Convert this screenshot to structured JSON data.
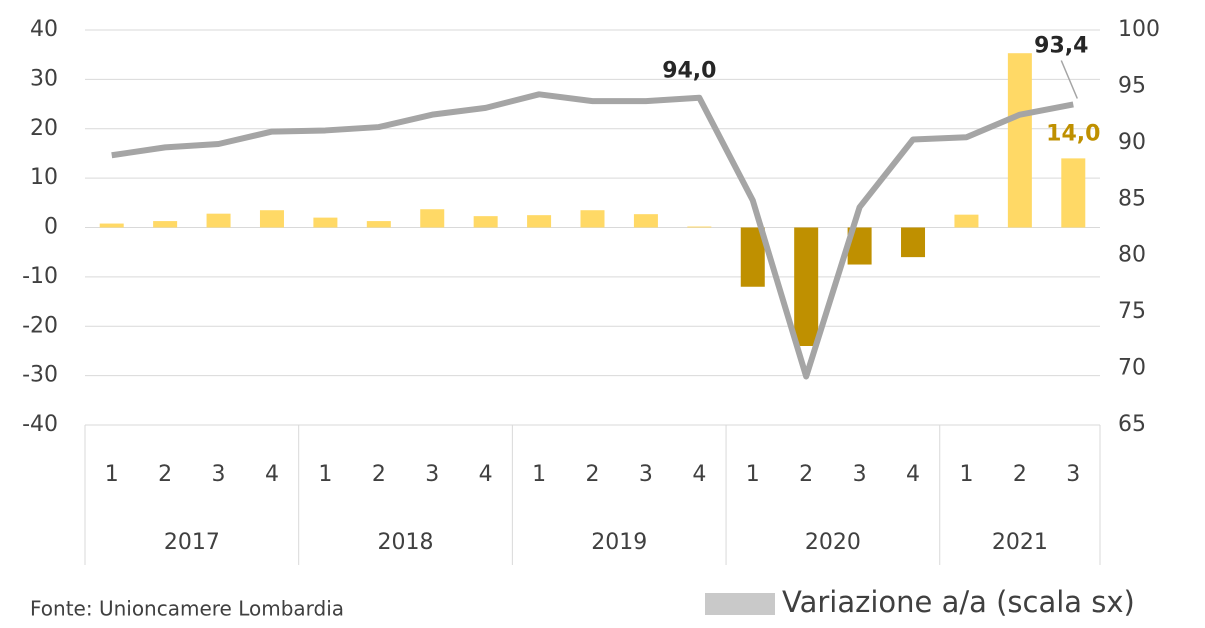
{
  "chart_data": {
    "type": "bar_line",
    "categories": [
      "1",
      "2",
      "3",
      "4",
      "1",
      "2",
      "3",
      "4",
      "1",
      "2",
      "3",
      "4",
      "1",
      "2",
      "3",
      "4",
      "1",
      "2",
      "3"
    ],
    "groups": [
      {
        "label": "2017",
        "count": 4
      },
      {
        "label": "2018",
        "count": 4
      },
      {
        "label": "2019",
        "count": 4
      },
      {
        "label": "2020",
        "count": 4
      },
      {
        "label": "2021",
        "count": 3
      }
    ],
    "series": [
      {
        "type": "bar",
        "axis": "y",
        "colors": [
          "#ffd966",
          "#ffd966",
          "#ffd966",
          "#ffd966",
          "#ffd966",
          "#ffd966",
          "#ffd966",
          "#ffd966",
          "#ffd966",
          "#ffd966",
          "#ffd966",
          "#ffd966",
          "#bf9000",
          "#bf9000",
          "#bf9000",
          "#bf9000",
          "#ffd966",
          "#ffd966",
          "#ffd966"
        ],
        "values": [
          0.8,
          1.3,
          2.8,
          3.5,
          2.0,
          1.3,
          3.7,
          2.3,
          2.5,
          3.5,
          2.7,
          0.2,
          -12,
          -24,
          -7.5,
          -6,
          2.6,
          35.3,
          14.0
        ],
        "value_labels": [
          null,
          null,
          null,
          null,
          null,
          null,
          null,
          null,
          null,
          null,
          null,
          null,
          null,
          null,
          null,
          null,
          null,
          null,
          "14,0"
        ],
        "label_color": "#bf9000"
      },
      {
        "type": "line",
        "axis": "y2",
        "color": "#a5a5a5",
        "values": [
          88.9,
          89.6,
          89.9,
          91.0,
          91.1,
          91.4,
          92.5,
          93.1,
          94.3,
          93.7,
          93.7,
          94.0,
          84.9,
          69.3,
          84.3,
          90.3,
          90.5,
          92.5,
          93.4
        ],
        "value_labels": [
          null,
          null,
          null,
          null,
          null,
          null,
          null,
          null,
          null,
          null,
          null,
          "94,0",
          null,
          null,
          null,
          null,
          null,
          null,
          "93,4"
        ],
        "label_color": "#262626"
      }
    ],
    "ylim": [
      -40,
      40
    ],
    "yticks": [
      -40,
      -30,
      -20,
      -10,
      0,
      10,
      20,
      30,
      40
    ],
    "y2lim": [
      65,
      100
    ],
    "y2ticks": [
      65,
      70,
      75,
      80,
      85,
      90,
      95,
      100
    ],
    "grid": true,
    "legend": [
      {
        "name": "Variazione a/a (scala sx)",
        "color": "#c9c9c9"
      }
    ],
    "source": "Fonte: Unioncamere Lombardia"
  }
}
